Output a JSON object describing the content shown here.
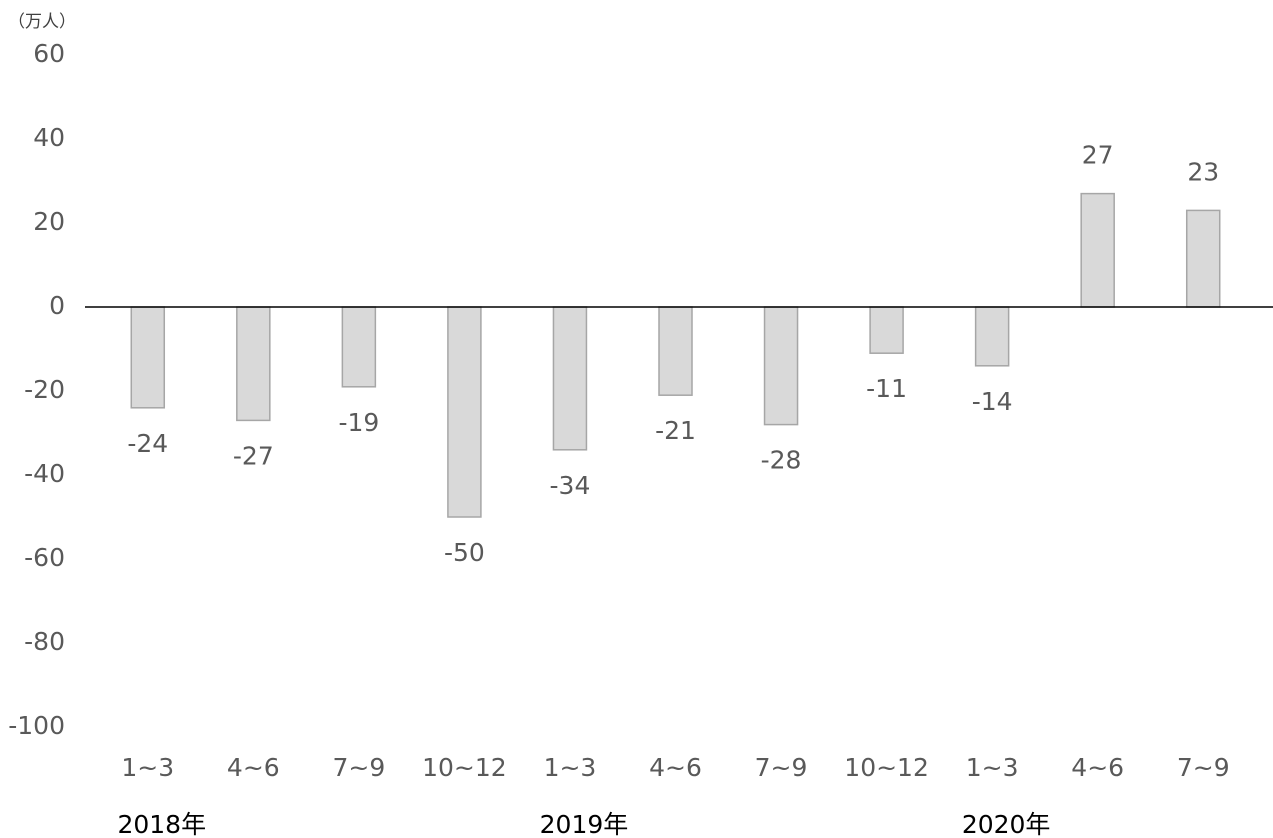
{
  "chart_data": {
    "type": "bar",
    "unit_label": "（万人）",
    "categories": [
      "1~3",
      "4~6",
      "7~9",
      "10~12",
      "1~3",
      "4~6",
      "7~9",
      "10~12",
      "1~3",
      "4~6",
      "7~9"
    ],
    "category_groups": [
      "2018年",
      null,
      null,
      null,
      "2019年",
      null,
      null,
      null,
      "2020年",
      null,
      null
    ],
    "values": [
      -24,
      -27,
      -19,
      -50,
      -34,
      -21,
      -28,
      -11,
      -14,
      27,
      23
    ],
    "color": "#d9d9d9",
    "edge_color": "#a6a6a6",
    "ylim": [
      -100,
      60
    ],
    "yticks": [
      -100,
      -80,
      -60,
      -40,
      -20,
      0,
      20,
      40,
      60
    ],
    "grid": false,
    "data_labels": true
  }
}
